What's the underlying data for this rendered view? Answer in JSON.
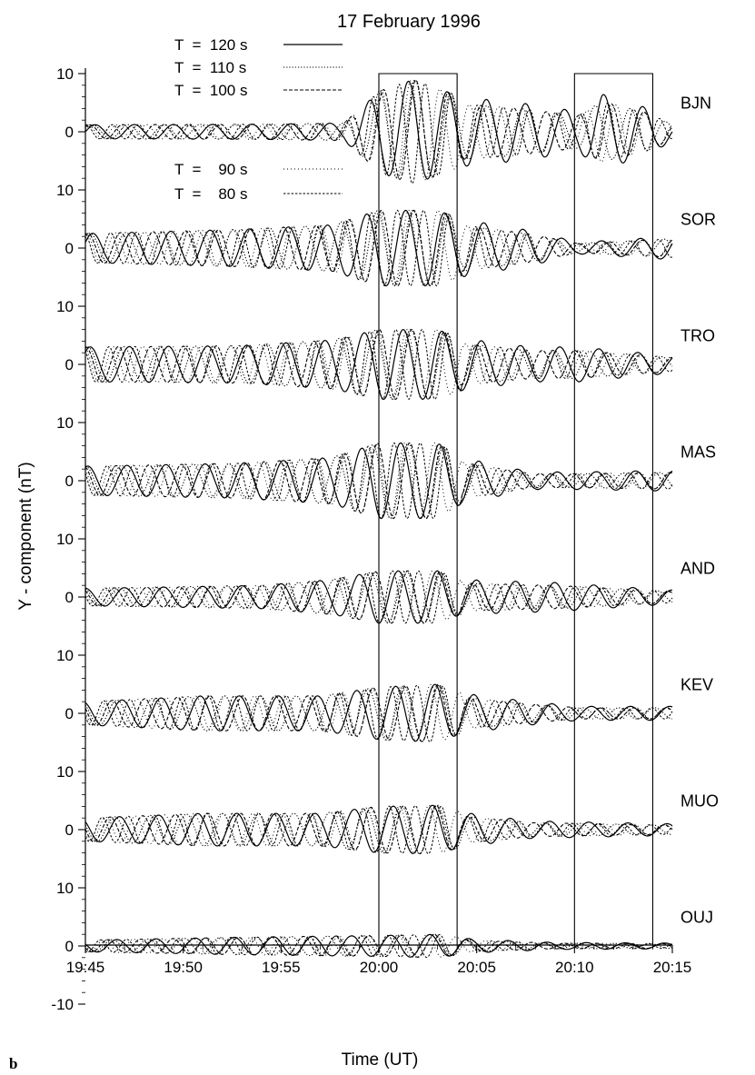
{
  "chart_data": {
    "type": "line",
    "title": "17 February 1996",
    "xlabel": "Time (UT)",
    "ylabel": "Y - component  (nT)",
    "panel_label": "b",
    "x_ticks": [
      "19:45",
      "19:50",
      "19:55",
      "20:00",
      "20:05",
      "20:10",
      "20:15"
    ],
    "x_range": [
      "19:45",
      "20:15"
    ],
    "y_tick_labels": [
      "10",
      "0",
      "10",
      "0",
      "10",
      "0",
      "10",
      "0",
      "10",
      "0",
      "10",
      "0",
      "10",
      "0",
      "10",
      "0",
      "-10"
    ],
    "y_range": [
      -10,
      10
    ],
    "grid": false,
    "legend_position": "top-left",
    "legend": [
      {
        "label": "T  =  120 s",
        "style": "solid"
      },
      {
        "label": "T  =  110 s",
        "style": "dotted"
      },
      {
        "label": "T  =  100 s",
        "style": "dashed"
      },
      {
        "label": "T  =    90 s",
        "style": "dotted-sparse"
      },
      {
        "label": "T  =    80 s",
        "style": "dashed-dense"
      }
    ],
    "highlight_windows": [
      [
        "20:00",
        "20:04"
      ],
      [
        "20:10",
        "20:14"
      ]
    ],
    "stations": [
      {
        "name": "BJN",
        "baseline_offset_nT": 70,
        "peak_amplitude_nT": 9,
        "envelope": [
          [
            19.75,
            1.2
          ],
          [
            19.9,
            1.3
          ],
          [
            19.97,
            1.5
          ],
          [
            19.99,
            5
          ],
          [
            20.0,
            7
          ],
          [
            20.03,
            9
          ],
          [
            20.07,
            6
          ],
          [
            20.12,
            5
          ],
          [
            20.17,
            3.5
          ],
          [
            20.19,
            6.5
          ],
          [
            20.23,
            4
          ],
          [
            20.25,
            1.5
          ]
        ]
      },
      {
        "name": "SOR",
        "baseline_offset_nT": 50,
        "peak_amplitude_nT": 7,
        "envelope": [
          [
            19.75,
            2.5
          ],
          [
            19.88,
            3.2
          ],
          [
            19.96,
            4
          ],
          [
            20.0,
            6.5
          ],
          [
            20.05,
            6.5
          ],
          [
            20.07,
            5
          ],
          [
            20.13,
            3
          ],
          [
            20.17,
            1
          ],
          [
            20.25,
            2
          ]
        ]
      },
      {
        "name": "TRO",
        "baseline_offset_nT": 30,
        "peak_amplitude_nT": 7,
        "envelope": [
          [
            19.75,
            3
          ],
          [
            19.88,
            3.2
          ],
          [
            19.96,
            4.2
          ],
          [
            20.0,
            6
          ],
          [
            20.05,
            6
          ],
          [
            20.07,
            4.5
          ],
          [
            20.13,
            3
          ],
          [
            20.17,
            3
          ],
          [
            20.25,
            1.5
          ]
        ]
      },
      {
        "name": "MAS",
        "baseline_offset_nT": 10,
        "peak_amplitude_nT": 8,
        "envelope": [
          [
            19.75,
            2.5
          ],
          [
            19.88,
            3
          ],
          [
            19.96,
            4
          ],
          [
            20.0,
            6.5
          ],
          [
            20.05,
            6.5
          ],
          [
            20.07,
            4
          ],
          [
            20.13,
            1.5
          ],
          [
            20.17,
            1.5
          ],
          [
            20.25,
            1.8
          ]
        ]
      },
      {
        "name": "AND",
        "baseline_offset_nT": -10,
        "peak_amplitude_nT": 5.5,
        "envelope": [
          [
            19.75,
            1.5
          ],
          [
            19.9,
            2
          ],
          [
            19.96,
            3
          ],
          [
            20.0,
            4.5
          ],
          [
            20.05,
            4.5
          ],
          [
            20.07,
            3
          ],
          [
            20.15,
            2.5
          ],
          [
            20.25,
            1.2
          ]
        ]
      },
      {
        "name": "KEV",
        "baseline_offset_nT": -30,
        "peak_amplitude_nT": 5.5,
        "envelope": [
          [
            19.75,
            2
          ],
          [
            19.85,
            3
          ],
          [
            19.95,
            3
          ],
          [
            20.0,
            4.5
          ],
          [
            20.05,
            5
          ],
          [
            20.07,
            3.5
          ],
          [
            20.13,
            2
          ],
          [
            20.17,
            1.2
          ],
          [
            20.25,
            1.2
          ]
        ]
      },
      {
        "name": "MUO",
        "baseline_offset_nT": -50,
        "peak_amplitude_nT": 4.5,
        "envelope": [
          [
            19.75,
            2
          ],
          [
            19.85,
            2.8
          ],
          [
            19.95,
            2.8
          ],
          [
            20.0,
            4
          ],
          [
            20.05,
            4.2
          ],
          [
            20.07,
            3
          ],
          [
            20.13,
            1.5
          ],
          [
            20.25,
            1
          ]
        ]
      },
      {
        "name": "OUJ",
        "baseline_offset_nT": -70,
        "peak_amplitude_nT": 2,
        "envelope": [
          [
            19.75,
            1
          ],
          [
            19.88,
            1.5
          ],
          [
            20.0,
            1.8
          ],
          [
            20.05,
            2
          ],
          [
            20.08,
            1.2
          ],
          [
            20.15,
            0.6
          ],
          [
            20.25,
            0.5
          ]
        ]
      }
    ]
  }
}
